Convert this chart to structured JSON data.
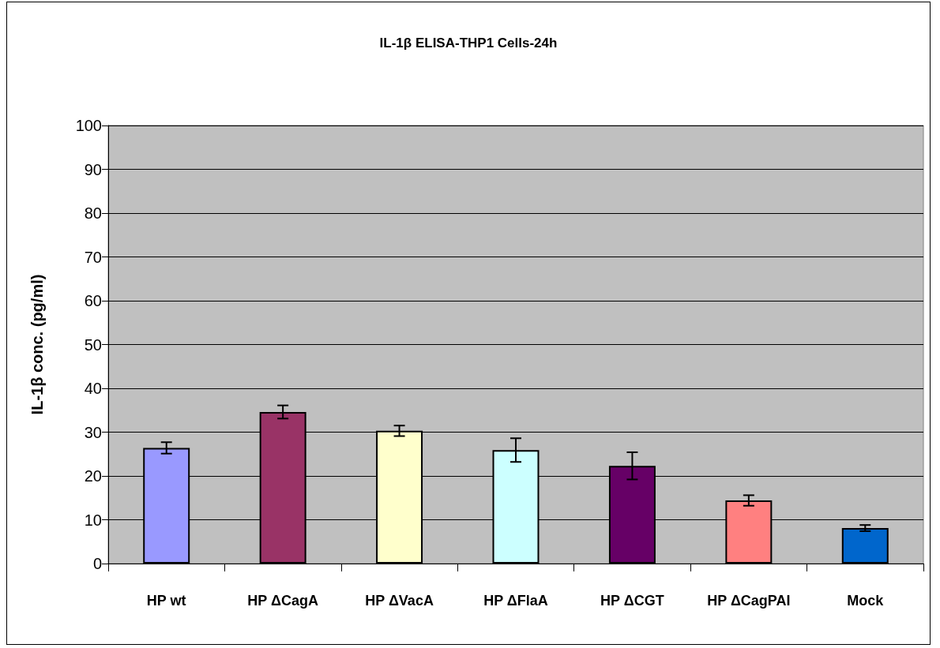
{
  "chart_data": {
    "type": "bar",
    "title": "IL-1β ELISA-THP1 Cells-24h",
    "ylabel": "IL-1β conc. (pg/ml)",
    "categories": [
      "HP wt",
      "HP ΔCagA",
      "HP ΔVacA",
      "HP ΔFlaA",
      "HP ΔCGT",
      "HP ΔCagPAI",
      "Mock"
    ],
    "values": [
      26.4,
      34.6,
      30.3,
      25.9,
      22.3,
      14.4,
      8.1
    ],
    "errors": [
      1.3,
      1.5,
      1.2,
      2.7,
      3.1,
      1.2,
      0.7
    ],
    "colors": [
      "#9999ff",
      "#993366",
      "#ffffcc",
      "#ccffff",
      "#660066",
      "#ff8080",
      "#0066cc"
    ],
    "ylim": [
      0,
      100
    ],
    "yticks": [
      0,
      10,
      20,
      30,
      40,
      50,
      60,
      70,
      80,
      90,
      100
    ],
    "grid": "y"
  }
}
